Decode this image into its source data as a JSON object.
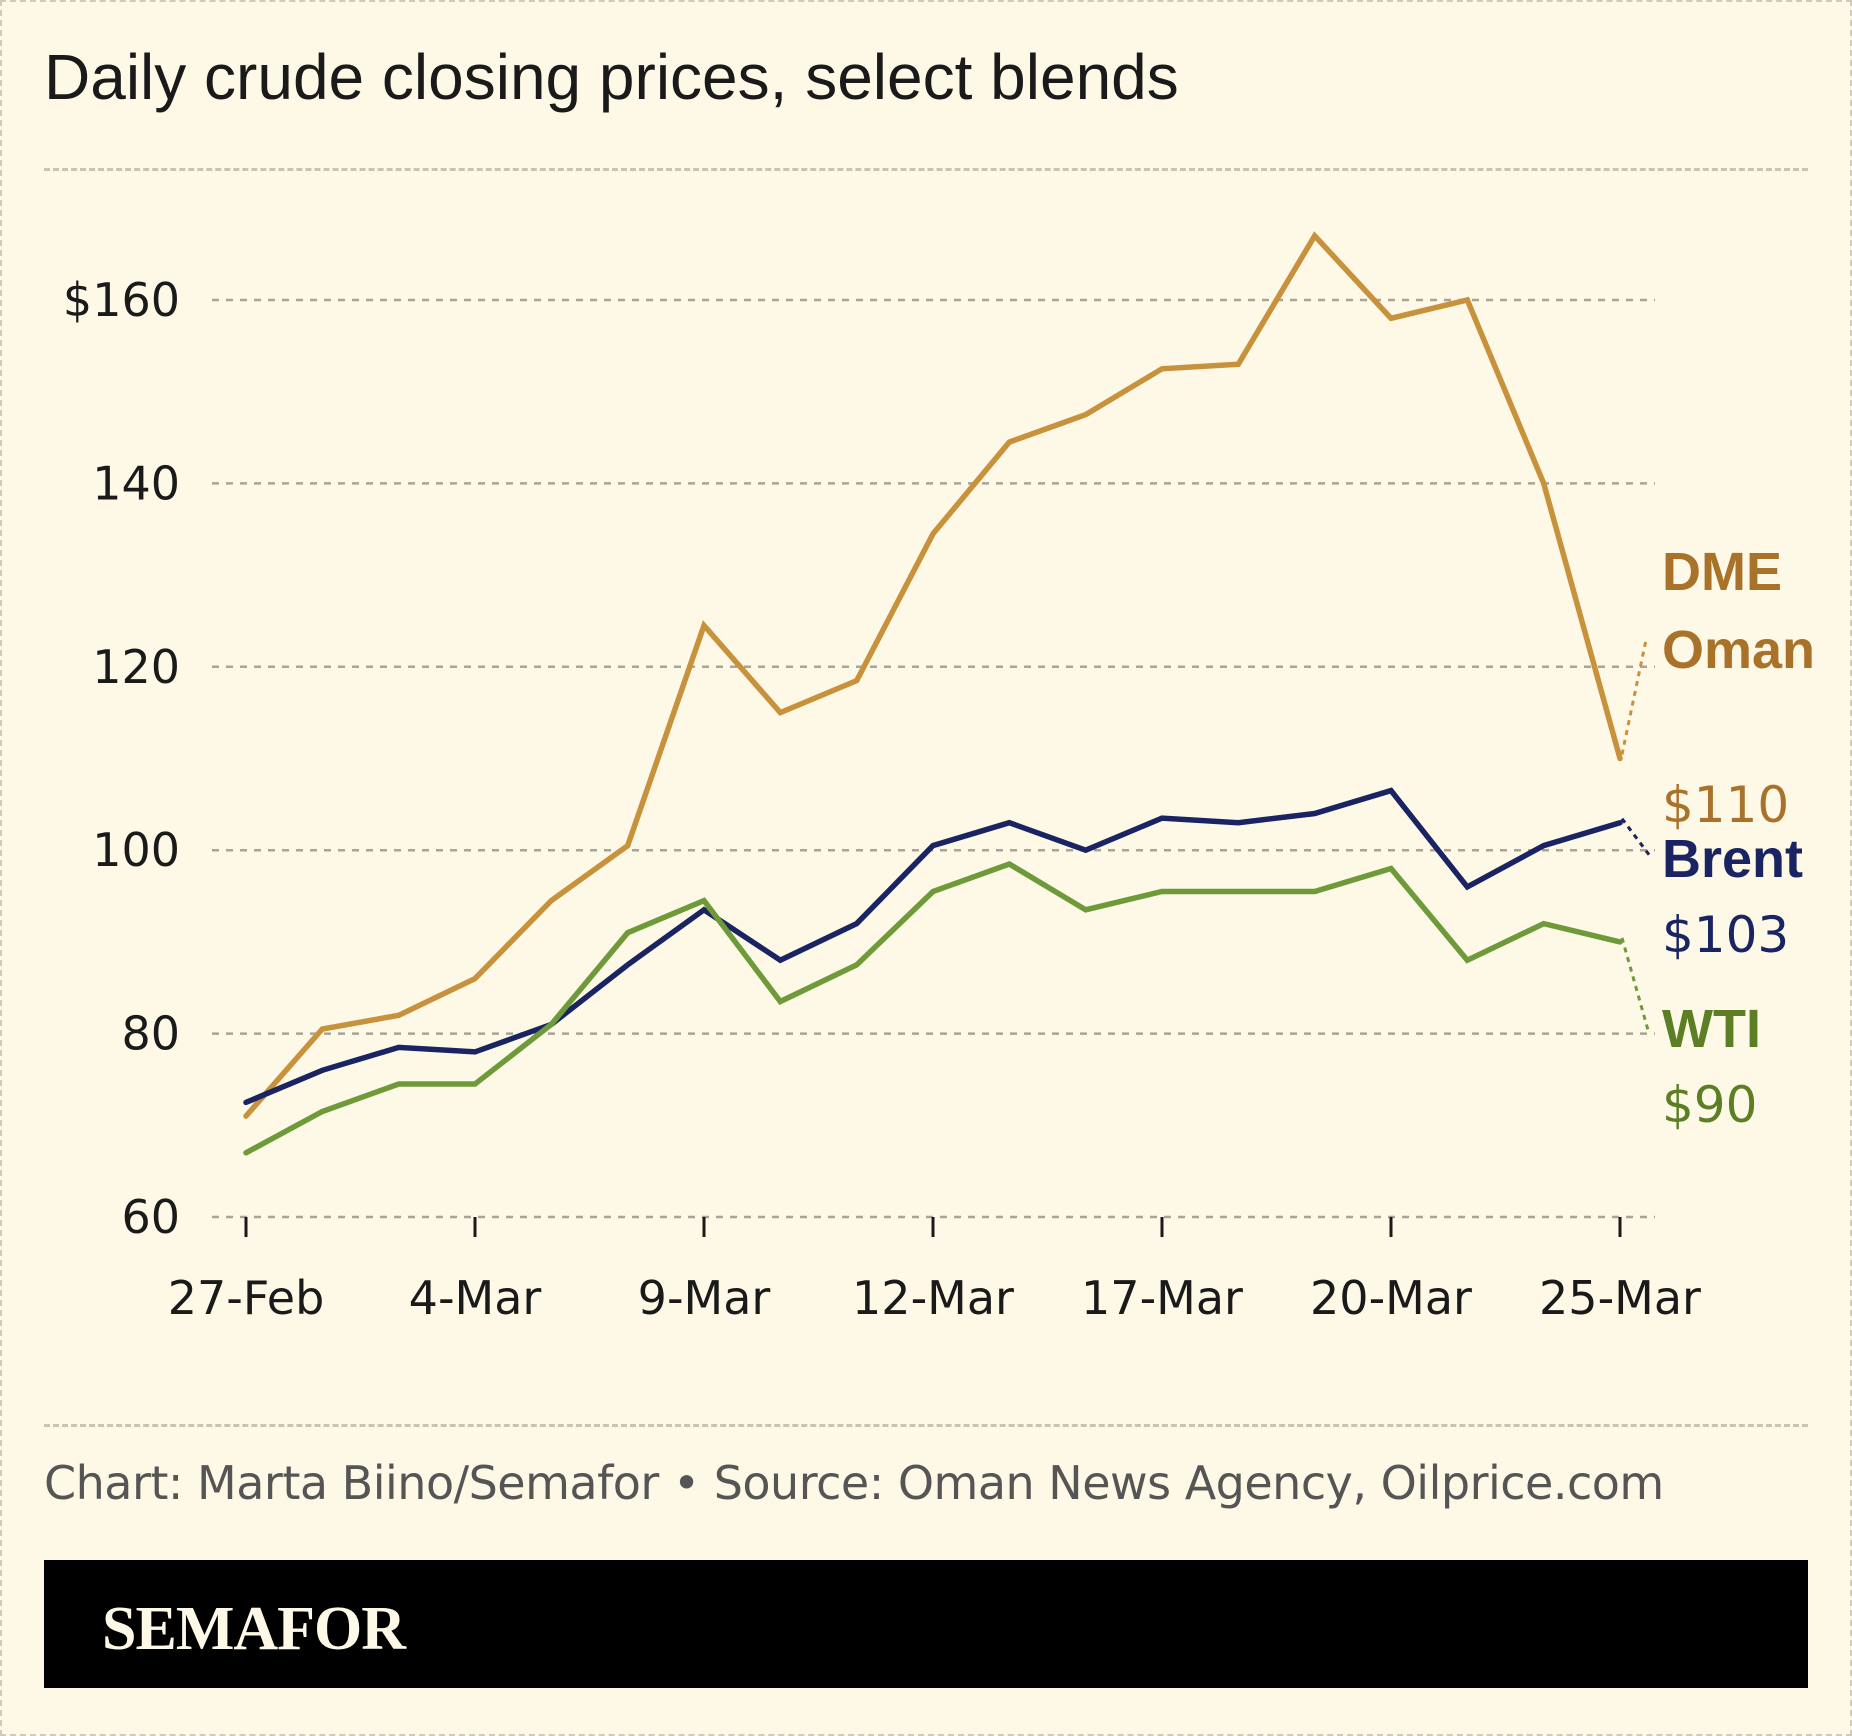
{
  "title": "Daily crude closing prices, select blends",
  "credit": "Chart: Marta Biino/Semafor • Source: Oman News Agency, Oilprice.com",
  "brand": "SEMAFOR",
  "chart_data": {
    "type": "line",
    "title": "Daily crude closing prices, select blends",
    "xlabel": "",
    "ylabel": "",
    "ylim": [
      60,
      170
    ],
    "yticks": [
      60,
      80,
      100,
      120,
      140,
      160
    ],
    "ytick_labels": [
      "60",
      "80",
      "100",
      "120",
      "140",
      "$160"
    ],
    "grid": true,
    "x": [
      "27-Feb",
      "2-Mar",
      "3-Mar",
      "4-Mar",
      "5-Mar",
      "6-Mar",
      "9-Mar",
      "10-Mar",
      "11-Mar",
      "12-Mar",
      "13-Mar",
      "16-Mar",
      "17-Mar",
      "18-Mar",
      "19-Mar",
      "20-Mar",
      "23-Mar",
      "24-Mar",
      "25-Mar"
    ],
    "xtick_labels": [
      "27-Feb",
      "4-Mar",
      "9-Mar",
      "12-Mar",
      "17-Mar",
      "20-Mar",
      "25-Mar"
    ],
    "series": [
      {
        "name": "DME Oman",
        "label_lines": [
          "DME",
          "Oman"
        ],
        "end_label": "$110",
        "color": "#c8913b",
        "label_color": "#a9722a",
        "values": [
          71,
          80.5,
          82,
          86,
          94.5,
          100.5,
          124.5,
          115,
          118.5,
          134.5,
          144.5,
          147.5,
          152.5,
          153,
          167,
          158,
          160,
          140,
          110
        ]
      },
      {
        "name": "Brent",
        "label_lines": [
          "Brent"
        ],
        "end_label": "$103",
        "color": "#1b2463",
        "label_color": "#1b2463",
        "values": [
          72.5,
          76,
          78.5,
          78,
          81,
          87.5,
          93.5,
          88,
          92,
          100.5,
          103,
          100,
          103.5,
          103,
          104,
          106.5,
          96,
          100.5,
          103
        ]
      },
      {
        "name": "WTI",
        "label_lines": [
          "WTI"
        ],
        "end_label": "$90",
        "color": "#6e9a3a",
        "label_color": "#5c7f26",
        "values": [
          67,
          71.5,
          74.5,
          74.5,
          81,
          91,
          94.5,
          83.5,
          87.5,
          95.5,
          98.5,
          93.5,
          95.5,
          95.5,
          95.5,
          98,
          88,
          92,
          90
        ]
      }
    ]
  }
}
